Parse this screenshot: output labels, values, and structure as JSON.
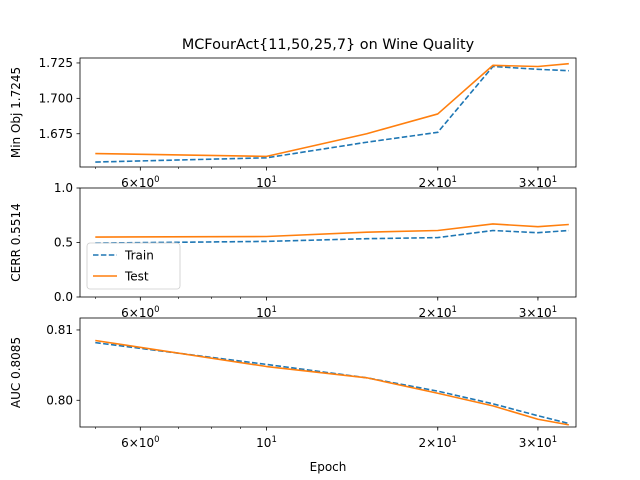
{
  "figure": {
    "title": "MCFourAct{11,50,25,7} on Wine Quality",
    "xlabel": "Epoch"
  },
  "colors": {
    "train": "#1f77b4",
    "test": "#ff7f0e",
    "axes": "#000000"
  },
  "chart_data": [
    {
      "type": "line",
      "ylabel": "Min Obj 1.7245",
      "xscale": "log",
      "xlim": [
        4.7,
        35
      ],
      "ylim": [
        1.6515,
        1.7285
      ],
      "yticks": [
        1.675,
        1.7,
        1.725
      ],
      "ytick_labels": [
        "1.675",
        "1.700",
        "1.725"
      ],
      "legend": null,
      "x": [
        5,
        10,
        15,
        20,
        25,
        30,
        34
      ],
      "series": [
        {
          "name": "Train",
          "style": "dashed",
          "values": [
            1.655,
            1.658,
            1.669,
            1.676,
            1.7225,
            1.7205,
            1.7195
          ]
        },
        {
          "name": "Test",
          "style": "solid",
          "values": [
            1.661,
            1.659,
            1.675,
            1.689,
            1.7233,
            1.7225,
            1.7245
          ]
        }
      ]
    },
    {
      "type": "line",
      "ylabel": "CERR 0.5514",
      "xscale": "log",
      "xlim": [
        4.7,
        35
      ],
      "ylim": [
        0.0,
        1.0
      ],
      "yticks": [
        0.0,
        0.5,
        1.0
      ],
      "ytick_labels": [
        "0.0",
        "0.5",
        "1.0"
      ],
      "legend": "center-left",
      "x": [
        5,
        10,
        15,
        20,
        25,
        30,
        34
      ],
      "series": [
        {
          "name": "Train",
          "style": "dashed",
          "values": [
            0.495,
            0.51,
            0.535,
            0.545,
            0.61,
            0.59,
            0.61
          ]
        },
        {
          "name": "Test",
          "style": "solid",
          "values": [
            0.55,
            0.555,
            0.595,
            0.61,
            0.67,
            0.645,
            0.665
          ]
        }
      ]
    },
    {
      "type": "line",
      "ylabel": "AUC 0.8085",
      "xscale": "log",
      "xlim": [
        4.7,
        35
      ],
      "ylim": [
        0.7962,
        0.8117
      ],
      "yticks": [
        0.8,
        0.81
      ],
      "ytick_labels": [
        "0.80",
        "0.81"
      ],
      "legend": null,
      "x": [
        5,
        10,
        15,
        20,
        25,
        30,
        34
      ],
      "series": [
        {
          "name": "Train",
          "style": "dashed",
          "values": [
            0.8082,
            0.8051,
            0.8032,
            0.8013,
            0.7995,
            0.7978,
            0.7967
          ]
        },
        {
          "name": "Test",
          "style": "solid",
          "values": [
            0.8085,
            0.8048,
            0.8032,
            0.801,
            0.7992,
            0.7973,
            0.7965
          ]
        }
      ]
    }
  ],
  "xaxis": {
    "ticks": [
      {
        "value": 6,
        "base": "6×10",
        "exp": "0"
      },
      {
        "value": 10,
        "base": "10",
        "exp": "1"
      },
      {
        "value": 20,
        "base": "2×10",
        "exp": "1"
      },
      {
        "value": 30,
        "base": "3×10",
        "exp": "1"
      }
    ],
    "minor_ticks": [
      5,
      7,
      8,
      9,
      20,
      30,
      40
    ]
  }
}
